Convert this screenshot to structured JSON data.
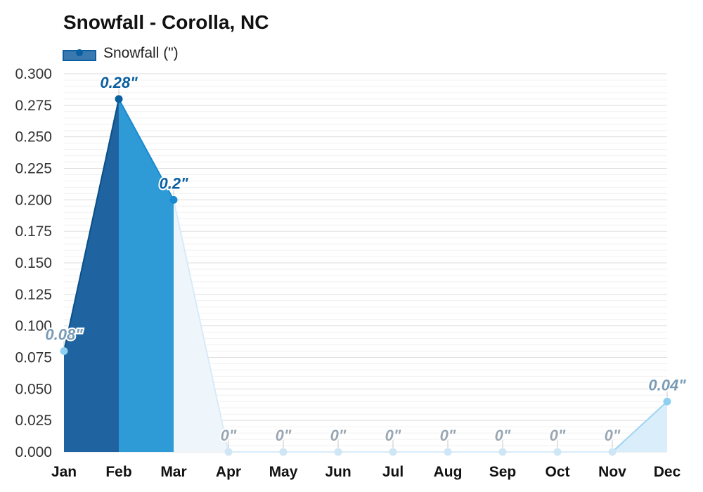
{
  "chart_data": {
    "type": "area",
    "title": "Snowfall - Corolla, NC",
    "legend": {
      "label": "Snowfall (\")",
      "placement": "top-left"
    },
    "categories": [
      "Jan",
      "Feb",
      "Mar",
      "Apr",
      "May",
      "Jun",
      "Jul",
      "Aug",
      "Sep",
      "Oct",
      "Nov",
      "Dec"
    ],
    "series": [
      {
        "name": "Snowfall (\")",
        "values": [
          0.08,
          0.28,
          0.2,
          0,
          0,
          0,
          0,
          0,
          0,
          0,
          0,
          0.04
        ],
        "labels": [
          "0.08\"",
          "0.28\"",
          "0.2\"",
          "0\"",
          "0\"",
          "0\"",
          "0\"",
          "0\"",
          "0\"",
          "0\"",
          "0\"",
          "0.04\""
        ]
      }
    ],
    "ylim": [
      0,
      0.3
    ],
    "yticks": [
      "0.000",
      "0.025",
      "0.050",
      "0.075",
      "0.100",
      "0.125",
      "0.150",
      "0.175",
      "0.200",
      "0.225",
      "0.250",
      "0.275",
      "0.300"
    ],
    "xlabel": "",
    "ylabel": "",
    "grid": true,
    "colors": {
      "main": "#0a5fa0",
      "fill_dark": "#1f64a0",
      "fill_mid": "#2e9ad6",
      "fill_light": "#d9edfa",
      "fill_faint": "#eef6fc",
      "label_dark": "#0a5fa0",
      "label_muted": "#7a9bb5",
      "label_zero": "#9aa7b3"
    }
  }
}
